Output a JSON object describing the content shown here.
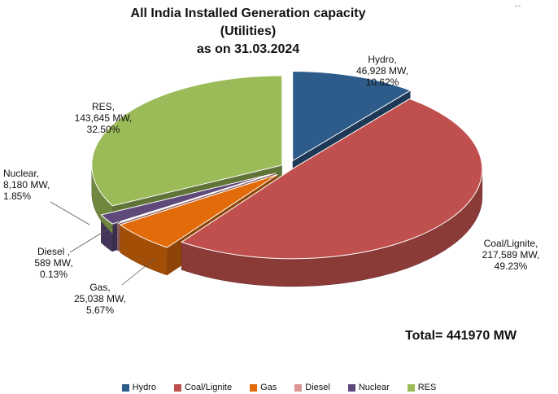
{
  "corner_text": "...",
  "chart_data": {
    "type": "pie",
    "title_lines": [
      "All India Installed Generation capacity",
      "(Utilities)",
      "as on 31.03.2024"
    ],
    "slices": [
      {
        "name": "Hydro",
        "value": 46928,
        "value_label": "46,928 MW,",
        "percent": "10.62%",
        "color": "#2e5c8a"
      },
      {
        "name": "Coal/Lignite",
        "value": 217589,
        "value_label": "217,589 MW,",
        "percent": "49.23%",
        "color": "#c0504d"
      },
      {
        "name": "Gas",
        "value": 25038,
        "value_label": "25,038 MW,",
        "percent": "5.67%",
        "color": "#e36c0a"
      },
      {
        "name": "Diesel",
        "value": 589,
        "value_label": "589 MW,",
        "percent": "0.13%",
        "color": "#d99694"
      },
      {
        "name": "Nuclear",
        "value": 8180,
        "value_label": "8,180 MW,",
        "percent": "1.85%",
        "color": "#5f497a"
      },
      {
        "name": "RES",
        "value": 143645,
        "value_label": "143,645 MW,",
        "percent": "32.50%",
        "color": "#9bbb59"
      }
    ],
    "label_names": [
      "Hydro,",
      "Coal/Lignite,",
      "Gas,",
      "Diesel ,",
      "Nuclear,",
      "RES,"
    ],
    "legend_labels": [
      "Hydro",
      "Coal/Lignite",
      "Gas",
      "Diesel",
      "Nuclear",
      "RES"
    ],
    "total_text": "Total=  441970 MW",
    "style": "3d-exploded-pie",
    "legend_placement": "bottom"
  }
}
